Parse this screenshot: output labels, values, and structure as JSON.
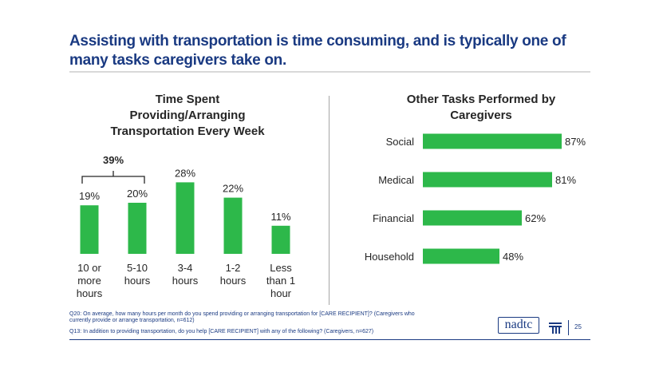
{
  "slide": {
    "title": "Assisting with transportation is time consuming, and is typically one of many tasks caregivers take on.",
    "footnotes": [
      "Q20: On average, how many hours per month do you spend providing or arranging transportation for [CARE RECIPIENT]? (Caregivers who currently provide or arrange transportation, n=612)",
      "Q13: In addition to providing transportation, do you help [CARE RECIPIENT] with any of the following? (Caregivers, n=627)"
    ],
    "logo": "nadtc",
    "page_number": "25"
  },
  "colors": {
    "bar": "#2db84a",
    "title": "#1a3a82",
    "text": "#262626"
  },
  "chart_data": [
    {
      "type": "bar",
      "title_lines": [
        "Time Spent",
        "Providing/Arranging",
        "Transportation Every Week"
      ],
      "categories": [
        [
          "10 or",
          "more",
          "hours"
        ],
        [
          "5-10",
          "hours"
        ],
        [
          "3-4",
          "hours"
        ],
        [
          "1-2",
          "hours"
        ],
        [
          "Less",
          "than 1",
          "hour"
        ]
      ],
      "values": [
        19,
        20,
        28,
        22,
        11
      ],
      "value_labels": [
        "19%",
        "20%",
        "28%",
        "22%",
        "11%"
      ],
      "annotation": {
        "text": "39%",
        "spans": [
          0,
          1
        ]
      }
    },
    {
      "type": "bar",
      "orientation": "horizontal",
      "title_lines": [
        "Other Tasks Performed by",
        "Caregivers"
      ],
      "categories": [
        "Social",
        "Medical",
        "Financial",
        "Household"
      ],
      "values": [
        87,
        81,
        62,
        48
      ],
      "value_labels": [
        "87%",
        "81%",
        "62%",
        "48%"
      ]
    }
  ]
}
